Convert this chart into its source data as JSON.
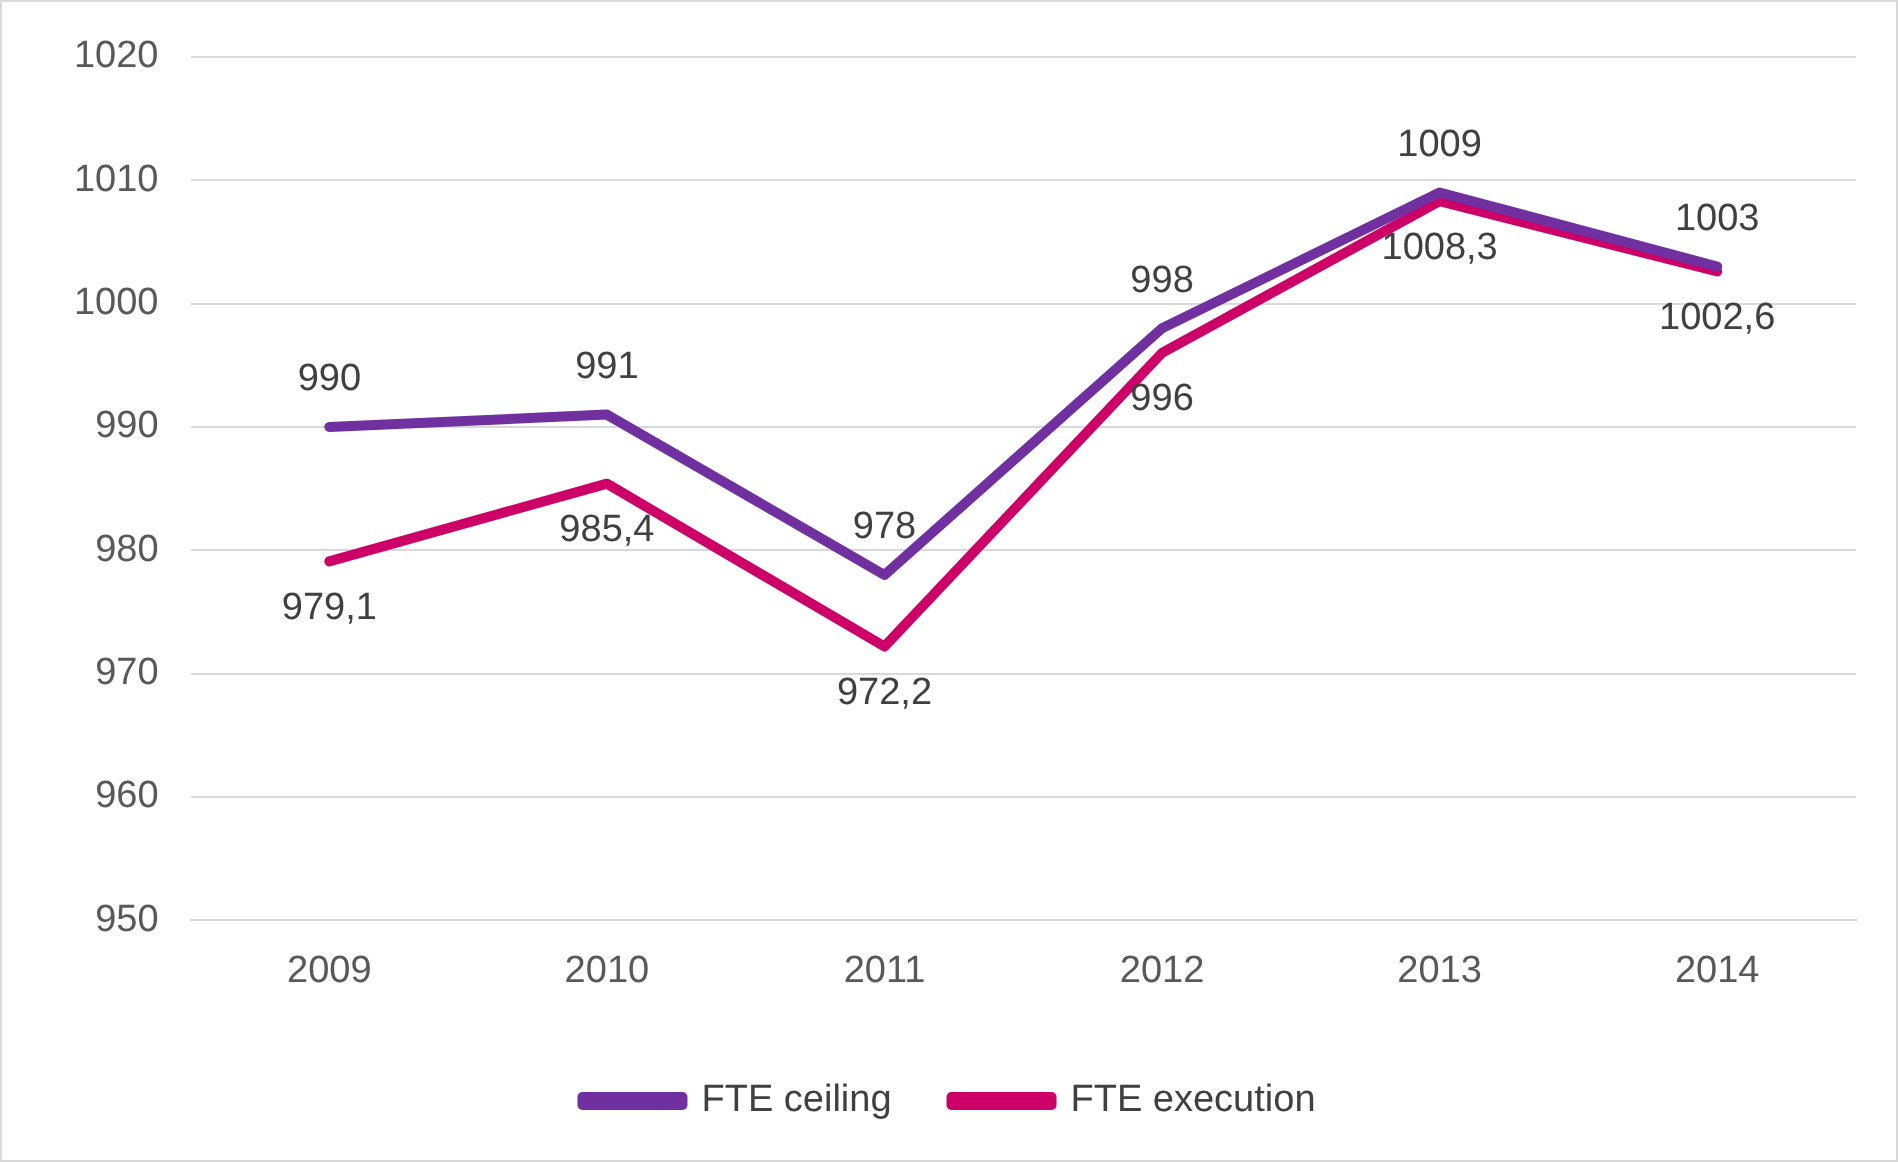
{
  "chart_data": {
    "type": "line",
    "categories": [
      "2009",
      "2010",
      "2011",
      "2012",
      "2013",
      "2014"
    ],
    "series": [
      {
        "name": "FTE ceiling",
        "color": "#7030a0",
        "values": [
          990,
          991,
          978,
          998,
          1009,
          1003
        ],
        "value_labels": [
          "990",
          "991",
          "978",
          "998",
          "1009",
          "1003"
        ]
      },
      {
        "name": "FTE execution",
        "color": "#cc0066",
        "values": [
          979.1,
          985.4,
          972.2,
          996,
          1008.3,
          1002.6
        ],
        "value_labels": [
          "979,1",
          "985,4",
          "972,2",
          "996",
          "1008,3",
          "1002,6"
        ]
      }
    ],
    "ylim": [
      950,
      1020
    ],
    "yticks": [
      950,
      960,
      970,
      980,
      990,
      1000,
      1010,
      1020
    ],
    "grid": "y",
    "legend": "bottom",
    "marker": "none",
    "line_style": "solid"
  }
}
